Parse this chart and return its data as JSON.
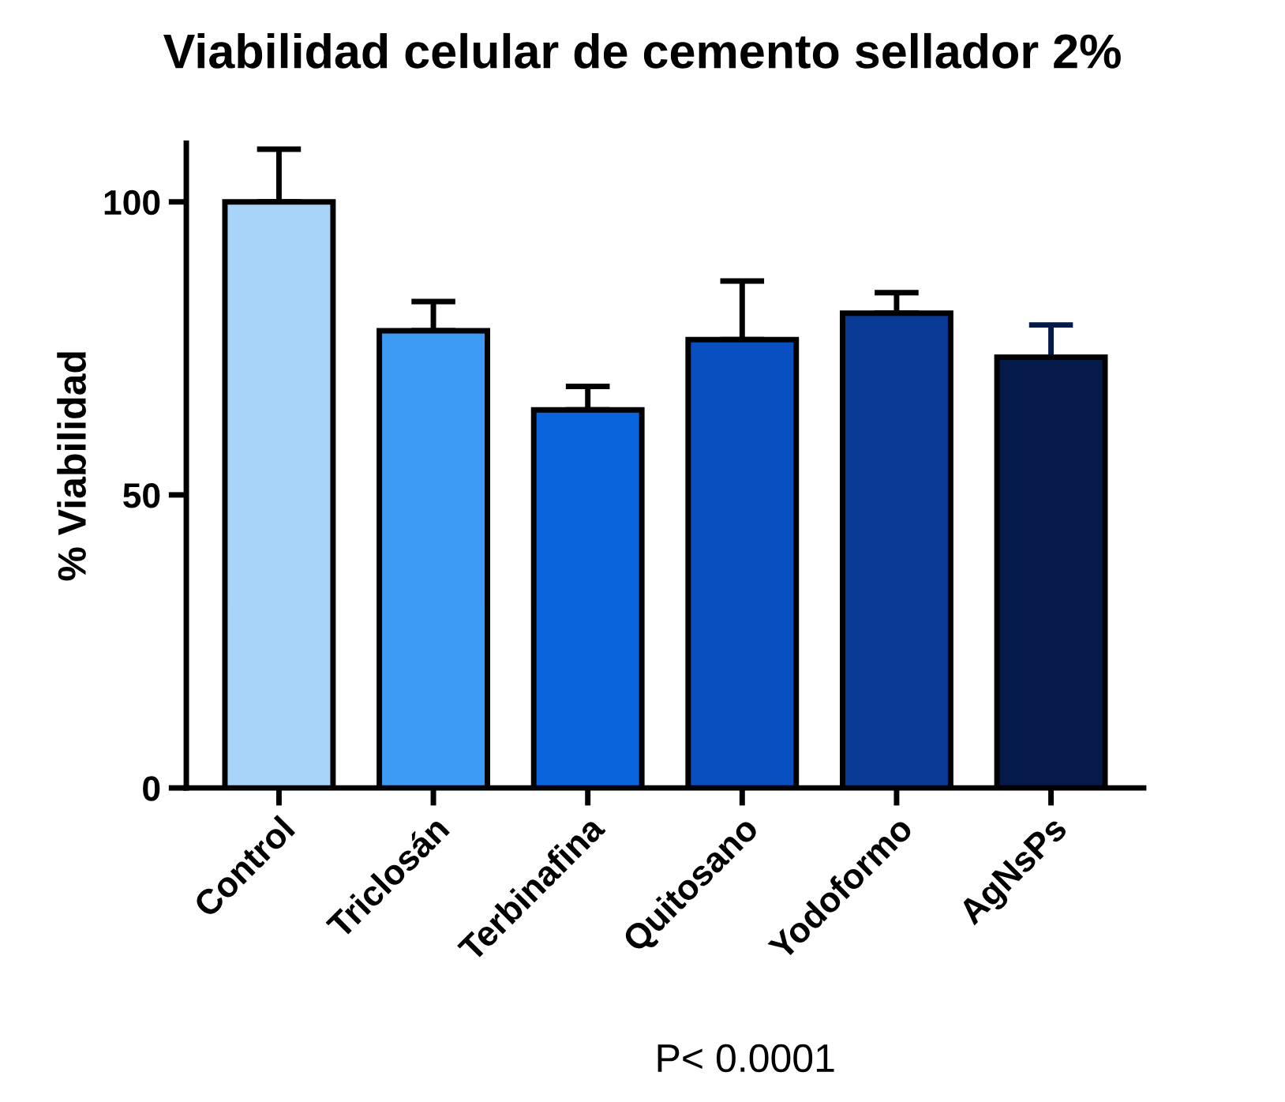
{
  "chart_data": {
    "type": "bar",
    "title": "Viabilidad celular de cemento sellador 2%",
    "ylabel": "% Viabilidad",
    "categories": [
      "Control",
      "Triclosán",
      "Terbinafina",
      "Quitosano",
      "Yodoformo",
      "AgNsPs"
    ],
    "values": [
      100,
      78,
      64.5,
      76.5,
      81,
      73.5
    ],
    "errors": [
      [
        100,
        109
      ],
      [
        78,
        83
      ],
      [
        64.5,
        68.5
      ],
      [
        76.5,
        86.5
      ],
      [
        81,
        84.5
      ],
      [
        73.5,
        79
      ]
    ],
    "colors": [
      "#a8d4fa",
      "#3d9bf5",
      "#0a65dc",
      "#0a4fbf",
      "#083a96",
      "#061a4a"
    ],
    "ylim": [
      0,
      110
    ],
    "yticks": [
      0,
      50,
      100
    ],
    "grid": false,
    "annotations": [
      "P< 0.0001"
    ]
  }
}
